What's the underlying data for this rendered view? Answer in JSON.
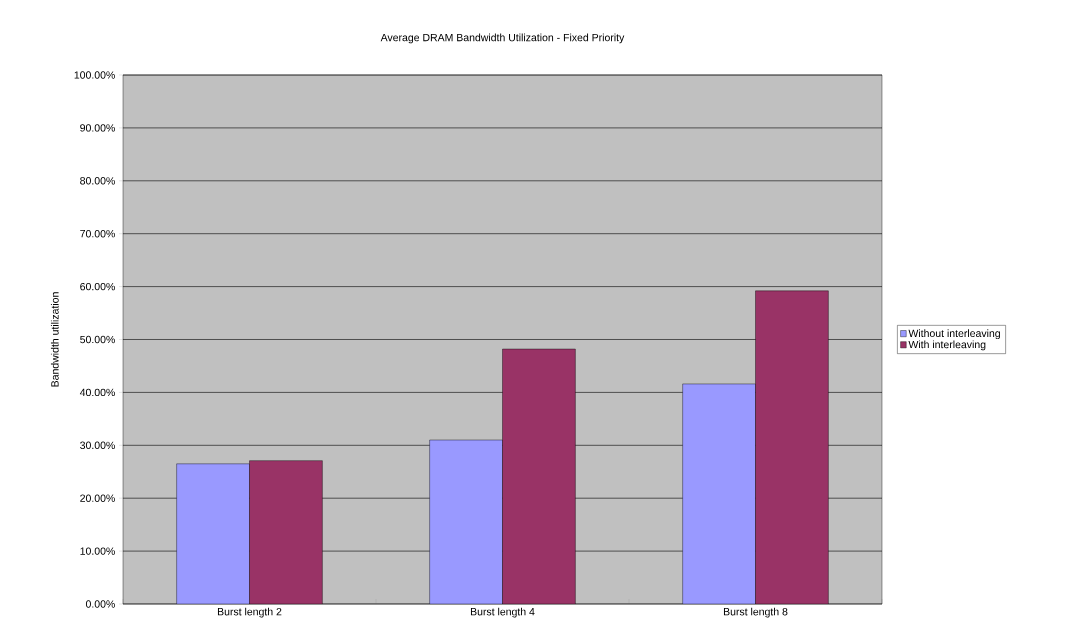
{
  "chart_data": {
    "type": "bar",
    "title": "Average DRAM Bandwidth Utilization - Fixed Priority",
    "ylabel": "Bandwidth utilization",
    "categories": [
      "Burst length 2",
      "Burst length 4",
      "Burst length 8"
    ],
    "series": [
      {
        "name": "Without interleaving",
        "color": "#9999ff",
        "values": [
          26.5,
          31.0,
          41.6
        ]
      },
      {
        "name": "With interleaving",
        "color": "#993366",
        "values": [
          27.1,
          48.2,
          59.2
        ]
      }
    ],
    "ylim": [
      0,
      100
    ],
    "yticks": [
      {
        "value": 0,
        "label": "0.00%"
      },
      {
        "value": 10,
        "label": "10.00%"
      },
      {
        "value": 20,
        "label": "20.00%"
      },
      {
        "value": 30,
        "label": "30.00%"
      },
      {
        "value": 40,
        "label": "40.00%"
      },
      {
        "value": 50,
        "label": "50.00%"
      },
      {
        "value": 60,
        "label": "60.00%"
      },
      {
        "value": 70,
        "label": "70.00%"
      },
      {
        "value": 80,
        "label": "80.00%"
      },
      {
        "value": 90,
        "label": "90.00%"
      },
      {
        "value": 100,
        "label": "100.00%"
      }
    ],
    "grid": "y",
    "legend": "right"
  }
}
